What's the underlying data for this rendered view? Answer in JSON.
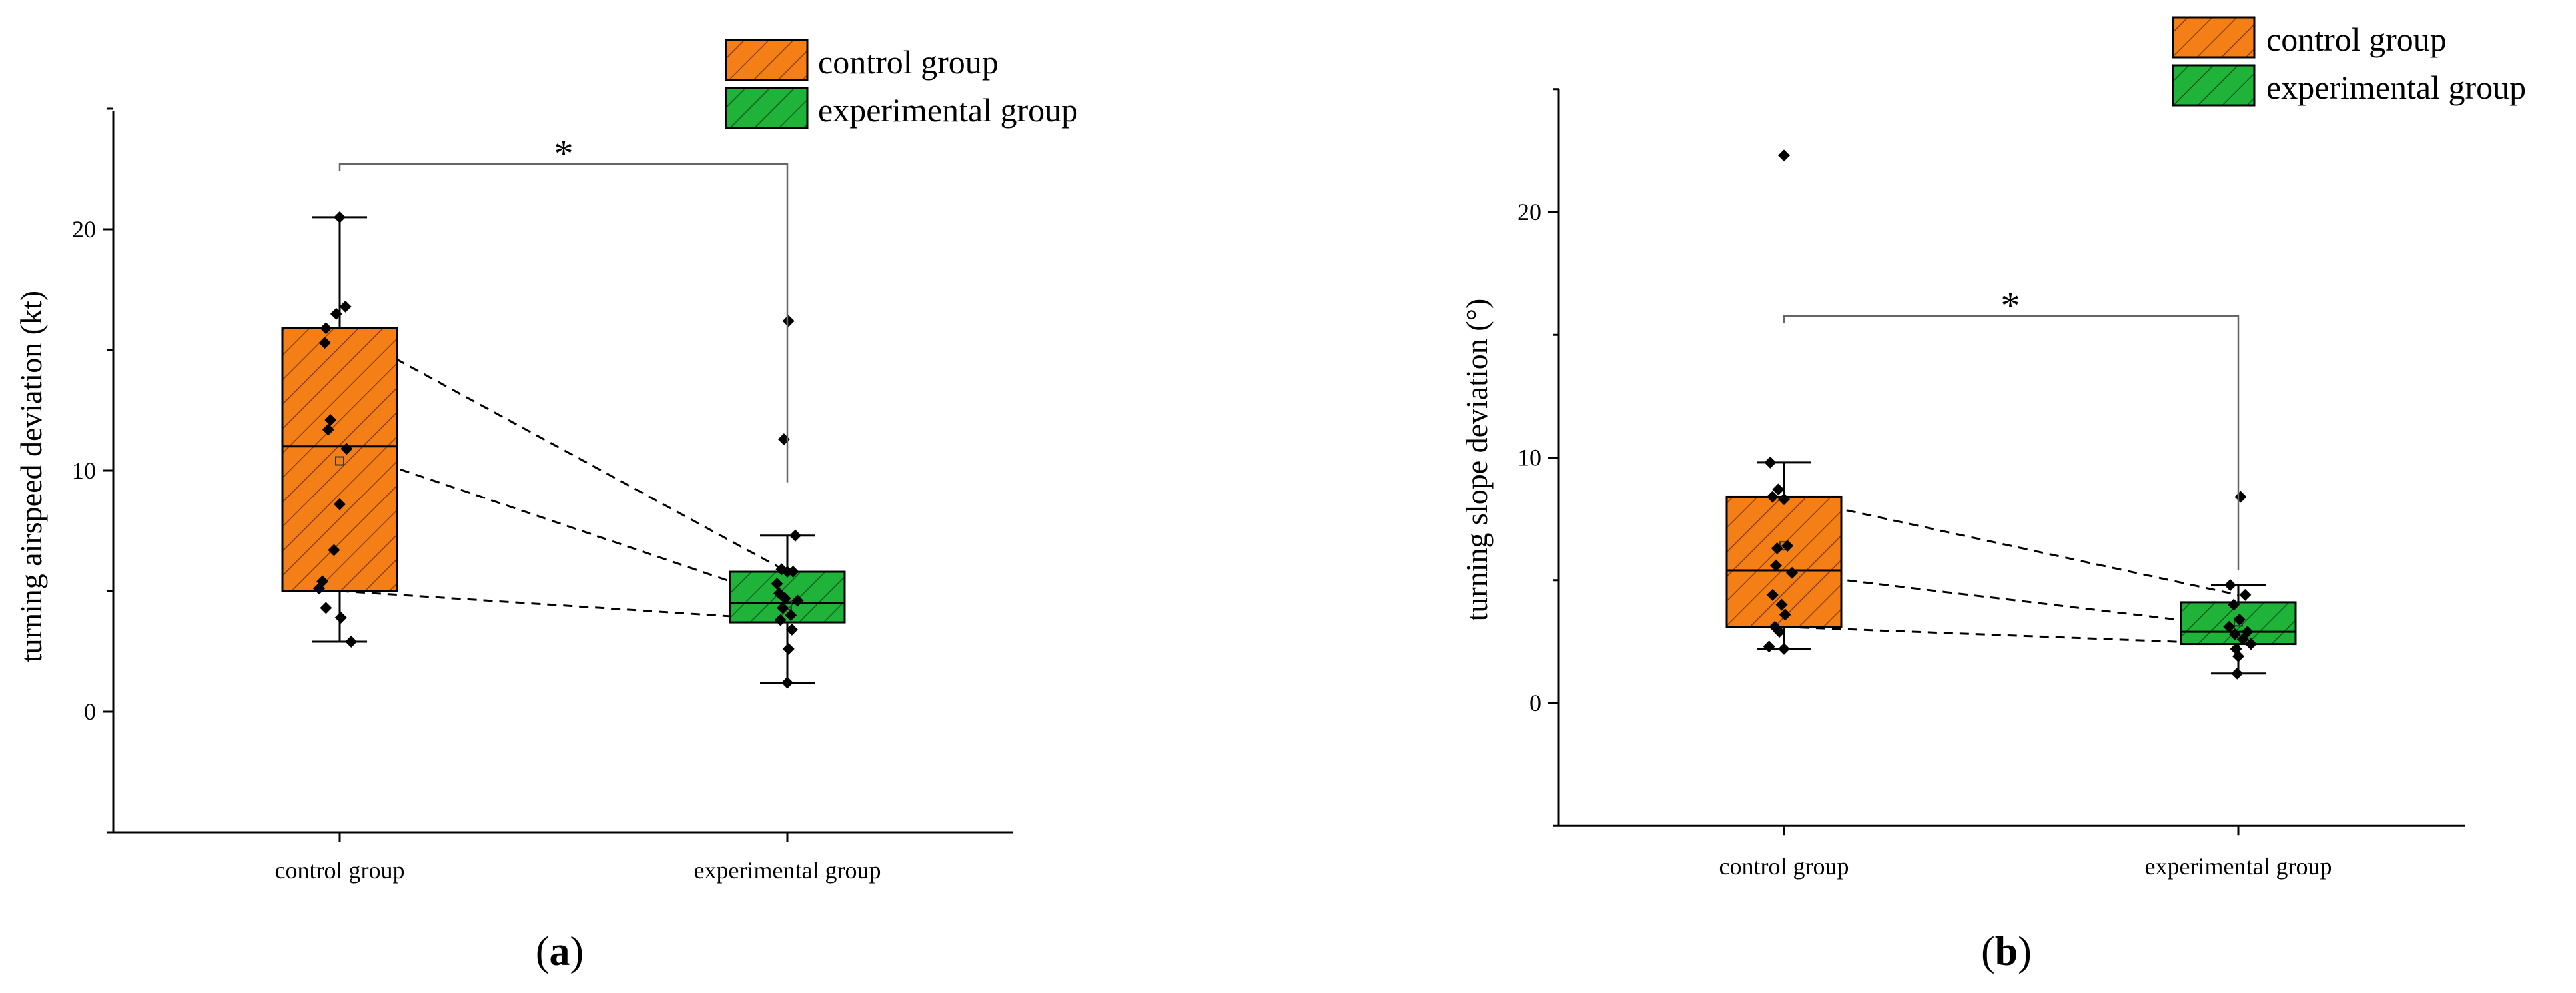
{
  "chart_data": [
    {
      "type": "box",
      "panel_label_prefix": "(",
      "panel_label_letter": "a",
      "panel_label_suffix": ")",
      "ylabel": "turning airspeed deviation (kt)",
      "ylim": [
        -5,
        25
      ],
      "yticks": [
        0,
        10,
        20
      ],
      "categories": [
        "control group",
        "experimental group"
      ],
      "legend": [
        "control group",
        "experimental group"
      ],
      "legend_position": "top-right",
      "significance": "*",
      "colors": {
        "control": "#F57F17",
        "experimental": "#1FB339",
        "hatch": "#7a3400",
        "hatch_exp": "#0c5a1c"
      },
      "boxes": [
        {
          "name": "control group",
          "q1": 5.0,
          "median": 11.0,
          "q3": 15.9,
          "whisker_low": 2.9,
          "whisker_high": 20.5,
          "mean": 10.4,
          "points": [
            [
              0.0,
              20.5
            ],
            [
              -0.12,
              15.9
            ],
            [
              -0.13,
              15.3
            ],
            [
              -0.03,
              16.5
            ],
            [
              0.05,
              16.8
            ],
            [
              -0.08,
              12.1
            ],
            [
              -0.1,
              11.7
            ],
            [
              0.06,
              10.9
            ],
            [
              0.0,
              8.6
            ],
            [
              -0.05,
              6.7
            ],
            [
              -0.15,
              5.4
            ],
            [
              -0.18,
              5.1
            ],
            [
              -0.12,
              4.3
            ],
            [
              0.01,
              3.9
            ],
            [
              0.1,
              2.9
            ]
          ]
        },
        {
          "name": "experimental group",
          "q1": 3.7,
          "median": 4.5,
          "q3": 5.8,
          "whisker_low": 1.2,
          "whisker_high": 7.3,
          "mean": 4.4,
          "points": [
            [
              0.01,
              16.2
            ],
            [
              -0.03,
              11.3
            ],
            [
              -0.05,
              5.9
            ],
            [
              0.0,
              5.8
            ],
            [
              0.05,
              5.8
            ],
            [
              0.07,
              7.3
            ],
            [
              -0.09,
              5.3
            ],
            [
              -0.07,
              4.9
            ],
            [
              -0.02,
              4.7
            ],
            [
              0.09,
              4.6
            ],
            [
              -0.04,
              4.3
            ],
            [
              0.03,
              4.0
            ],
            [
              -0.06,
              3.8
            ],
            [
              0.04,
              3.4
            ],
            [
              0.01,
              2.6
            ],
            [
              0.0,
              1.2
            ]
          ]
        }
      ],
      "trend_lines": [
        [
          15.9,
          5.8
        ],
        [
          10.9,
          4.6
        ],
        [
          5.0,
          3.8
        ]
      ]
    },
    {
      "type": "box",
      "panel_label_prefix": "(",
      "panel_label_letter": "b",
      "panel_label_suffix": ")",
      "ylabel": "turning slope deviation (°)",
      "ylim": [
        -5,
        25
      ],
      "yticks": [
        0,
        10,
        20
      ],
      "categories": [
        "control group",
        "experimental group"
      ],
      "legend": [
        "control group",
        "experimental group"
      ],
      "legend_position": "top-right",
      "significance": "*",
      "colors": {
        "control": "#F57F17",
        "experimental": "#1FB339",
        "hatch": "#7a3400",
        "hatch_exp": "#0c5a1c"
      },
      "boxes": [
        {
          "name": "control group",
          "q1": 3.1,
          "median": 5.4,
          "q3": 8.4,
          "whisker_low": 2.2,
          "whisker_high": 9.8,
          "mean": 6.4,
          "points": [
            [
              0.0,
              22.3
            ],
            [
              -0.12,
              9.8
            ],
            [
              -0.05,
              8.7
            ],
            [
              0.0,
              8.3
            ],
            [
              -0.1,
              8.4
            ],
            [
              -0.06,
              6.3
            ],
            [
              0.03,
              6.4
            ],
            [
              -0.07,
              5.6
            ],
            [
              0.07,
              5.3
            ],
            [
              -0.1,
              4.4
            ],
            [
              -0.02,
              4.0
            ],
            [
              0.01,
              3.6
            ],
            [
              -0.08,
              3.1
            ],
            [
              -0.13,
              2.3
            ],
            [
              0.0,
              2.2
            ],
            [
              -0.04,
              2.9
            ]
          ]
        },
        {
          "name": "experimental group",
          "q1": 2.4,
          "median": 2.9,
          "q3": 4.1,
          "whisker_low": 1.2,
          "whisker_high": 4.8,
          "mean": 3.3,
          "points": [
            [
              0.02,
              8.4
            ],
            [
              -0.07,
              4.8
            ],
            [
              0.06,
              4.4
            ],
            [
              -0.04,
              4.0
            ],
            [
              0.01,
              3.4
            ],
            [
              0.08,
              2.9
            ],
            [
              -0.08,
              3.1
            ],
            [
              -0.03,
              2.8
            ],
            [
              0.04,
              2.6
            ],
            [
              0.11,
              2.4
            ],
            [
              -0.02,
              2.2
            ],
            [
              0.0,
              1.9
            ],
            [
              -0.01,
              1.2
            ]
          ]
        }
      ],
      "trend_lines": [
        [
          8.4,
          4.4
        ],
        [
          5.3,
          3.1
        ],
        [
          3.1,
          2.4
        ]
      ]
    }
  ]
}
